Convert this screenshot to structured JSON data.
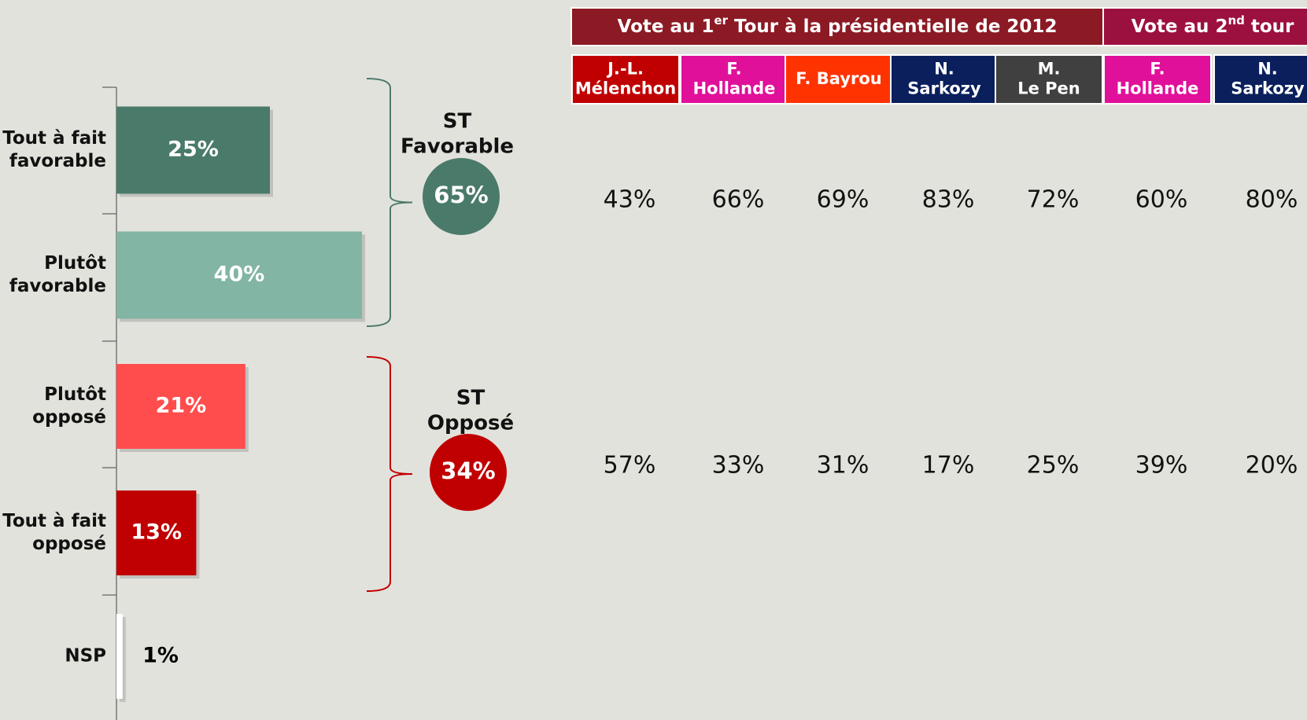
{
  "chart_data": {
    "type": "bar",
    "orientation": "horizontal",
    "categories": [
      [
        "Tout à fait",
        "favorable"
      ],
      [
        "Plutôt",
        "favorable"
      ],
      [
        "Plutôt",
        "opposé"
      ],
      [
        "Tout à fait",
        "opposé"
      ],
      [
        "NSP"
      ]
    ],
    "values": [
      25,
      40,
      21,
      13,
      1
    ],
    "value_labels": [
      "25%",
      "40%",
      "21%",
      "13%",
      "1%"
    ],
    "colors": [
      "#4a7a6a",
      "#82b5a3",
      "#ff4d4d",
      "#c00000",
      "#ffffff"
    ],
    "groups": [
      {
        "label_lines": [
          "ST",
          "Favorable"
        ],
        "value": 65,
        "value_label": "65%",
        "color": "#4a7a6a",
        "bracket_color": "#4a7a6a",
        "members": [
          0,
          1
        ]
      },
      {
        "label_lines": [
          "ST",
          "Opposé"
        ],
        "value": 34,
        "value_label": "34%",
        "color": "#c00000",
        "bracket_color": "#c00000",
        "members": [
          2,
          3
        ]
      }
    ]
  },
  "table": {
    "groups": [
      {
        "text": "Vote au 1",
        "sup": "er",
        "rest": " Tour à la présidentielle de 2012",
        "color": "#8b1a24",
        "span": 5
      },
      {
        "text": "Vote au 2",
        "sup": "nd",
        "rest": " tour",
        "color": "#9c1040",
        "span": 2
      }
    ],
    "columns": [
      {
        "lines": [
          "J.-L.",
          "Mélenchon"
        ],
        "color": "#c00000"
      },
      {
        "lines": [
          "F.",
          "Hollande"
        ],
        "color": "#e0109a"
      },
      {
        "lines": [
          "F. Bayrou"
        ],
        "color": "#ff3300"
      },
      {
        "lines": [
          "N.",
          "Sarkozy"
        ],
        "color": "#0a1f5c"
      },
      {
        "lines": [
          "M.",
          "Le Pen"
        ],
        "color": "#404040"
      },
      {
        "lines": [
          "F.",
          "Hollande"
        ],
        "color": "#e0109a"
      },
      {
        "lines": [
          "N.",
          "Sarkozy"
        ],
        "color": "#0a1f5c"
      }
    ],
    "rows": [
      [
        "43%",
        "66%",
        "69%",
        "83%",
        "72%",
        "60%",
        "80%"
      ],
      [
        "57%",
        "33%",
        "31%",
        "17%",
        "25%",
        "39%",
        "20%"
      ]
    ]
  }
}
